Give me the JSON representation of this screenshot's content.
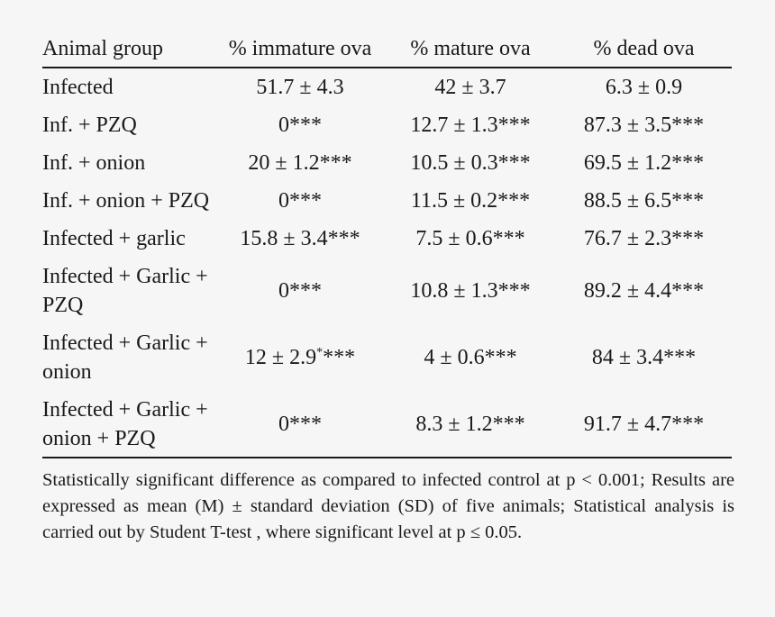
{
  "table": {
    "headers": [
      "Animal group",
      "% immature ova",
      "% mature ova",
      "% dead ova"
    ],
    "rows": [
      {
        "group": "Infected",
        "immature": "51.7 ± 4.3",
        "immature_sup": "",
        "immature_stars": "",
        "mature": "42 ± 3.7",
        "dead": "6.3 ± 0.9"
      },
      {
        "group": "Inf. + PZQ",
        "immature": "0***",
        "immature_sup": "",
        "immature_stars": "",
        "mature": "12.7 ± 1.3***",
        "dead": "87.3 ± 3.5***"
      },
      {
        "group": "Inf. + onion",
        "immature": "20 ± 1.2***",
        "immature_sup": "",
        "immature_stars": "",
        "mature": "10.5 ± 0.3***",
        "dead": "69.5 ± 1.2***"
      },
      {
        "group": "Inf. + onion + PZQ",
        "immature": "0***",
        "immature_sup": "",
        "immature_stars": "",
        "mature": "11.5 ± 0.2***",
        "dead": "88.5 ± 6.5***"
      },
      {
        "group": "Infected + garlic",
        "immature": "15.8 ± 3.4***",
        "immature_sup": "",
        "immature_stars": "",
        "mature": "7.5 ± 0.6***",
        "dead": "76.7 ± 2.3***"
      },
      {
        "group": "Infected + Garlic + PZQ",
        "immature": "0***",
        "immature_sup": "",
        "immature_stars": "",
        "mature": "10.8 ± 1.3***",
        "dead": "89.2 ± 4.4***"
      },
      {
        "group": "Infected + Garlic + onion",
        "immature": "12 ± 2.9",
        "immature_sup": "*",
        "immature_stars": "***",
        "mature": "4 ± 0.6***",
        "dead": "84 ± 3.4***"
      },
      {
        "group": "Infected + Garlic + onion + PZQ",
        "immature": "0***",
        "immature_sup": "",
        "immature_stars": "",
        "mature": "8.3 ± 1.2***",
        "dead": "91.7 ± 4.7***"
      }
    ]
  },
  "footnote": "Statistically significant difference as compared to infected control at p < 0.001; Results are expressed as mean (M) ± standard deviation (SD) of five animals; Statistical analysis is carried out by Student T-test , where significant level at p ≤ 0.05."
}
